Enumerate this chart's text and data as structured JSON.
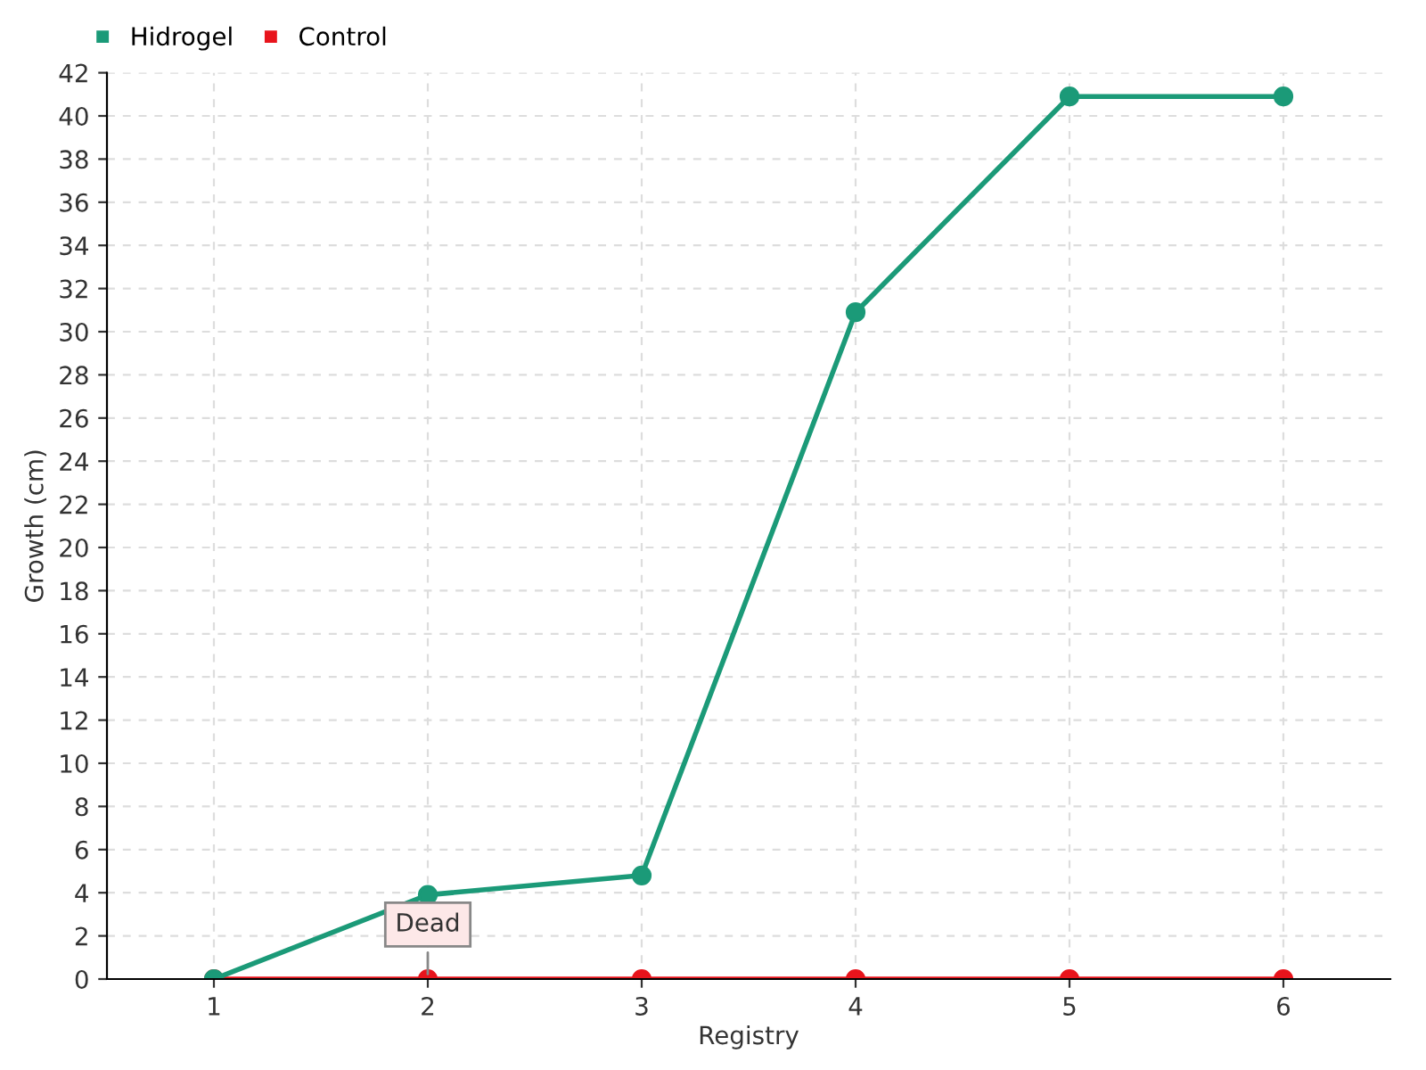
{
  "chart_data": {
    "type": "line",
    "xlabel": "Registry",
    "ylabel": "Growth (cm)",
    "categories": [
      "1",
      "2",
      "3",
      "4",
      "5",
      "6"
    ],
    "series": [
      {
        "name": "Hidrogel",
        "color": "#1b9a78",
        "values": [
          0,
          3.9,
          4.8,
          30.9,
          40.9,
          40.9
        ]
      },
      {
        "name": "Control",
        "color": "#e8141c",
        "values": [
          0,
          0,
          0,
          0,
          0,
          0
        ]
      }
    ],
    "ylim": [
      0,
      42
    ],
    "yticks": [
      0,
      2,
      4,
      6,
      8,
      10,
      12,
      14,
      16,
      18,
      20,
      22,
      24,
      26,
      28,
      30,
      32,
      34,
      36,
      38,
      40,
      42
    ],
    "grid": true,
    "legend": "top left",
    "marker": "circle",
    "line_style": "solid",
    "annotations": [
      {
        "text": "Dead",
        "x": "2",
        "y": 0
      }
    ]
  }
}
